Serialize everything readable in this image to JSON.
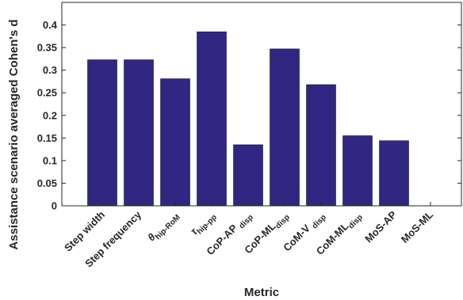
{
  "chart_data": {
    "type": "bar",
    "xlabel": "Metric",
    "ylabel": "Assistance scenario averaged Cohen's d",
    "ylim": [
      0,
      0.45
    ],
    "yticks": [
      0,
      0.05,
      0.1,
      0.15,
      0.2,
      0.25,
      0.3,
      0.35,
      0.4
    ],
    "ytick_labels": [
      "0",
      "0.05",
      "0.1",
      "0.15",
      "0.2",
      "0.25",
      "0.3",
      "0.35",
      "0.4"
    ],
    "grid": false,
    "bar_color": "#312783",
    "categories": [
      {
        "main": "Step width",
        "sub": ""
      },
      {
        "main": "Step frequency",
        "sub": ""
      },
      {
        "main": "θ",
        "sub": "hip-RoM"
      },
      {
        "main": "τ",
        "sub": "hip-pp"
      },
      {
        "main": "CoP-AP ",
        "sub": "disp"
      },
      {
        "main": "CoP-ML",
        "sub": "disp"
      },
      {
        "main": "CoM-V ",
        "sub": "disp"
      },
      {
        "main": "CoM-ML",
        "sub": "disp"
      },
      {
        "main": "MoS-AP",
        "sub": ""
      },
      {
        "main": "MoS-ML",
        "sub": ""
      }
    ],
    "values": [
      0.323,
      0.323,
      0.281,
      0.385,
      0.135,
      0.347,
      0.268,
      0.155,
      0.144,
      0
    ]
  }
}
